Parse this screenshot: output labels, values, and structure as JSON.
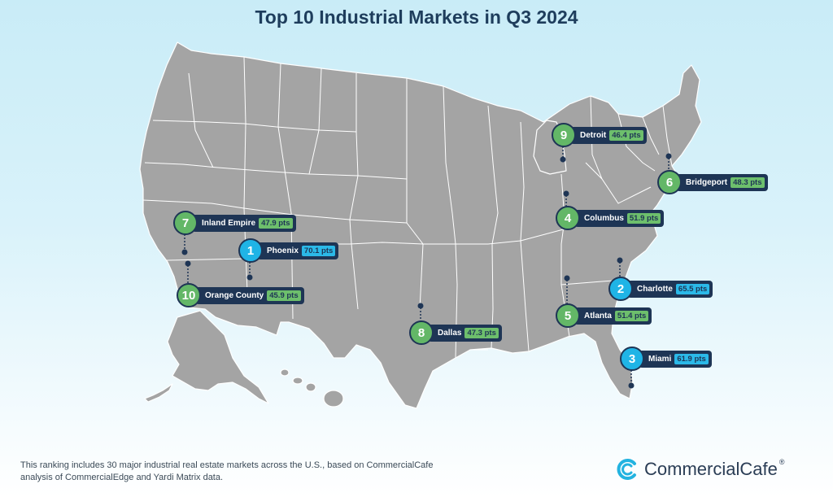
{
  "title": "Top 10 Industrial Markets in Q3 2024",
  "markets": [
    {
      "rank": "1",
      "city": "Phoenix",
      "points": "70.1 pts",
      "color": "blue"
    },
    {
      "rank": "2",
      "city": "Charlotte",
      "points": "65.5 pts",
      "color": "blue"
    },
    {
      "rank": "3",
      "city": "Miami",
      "points": "61.9 pts",
      "color": "blue"
    },
    {
      "rank": "4",
      "city": "Columbus",
      "points": "51.9 pts",
      "color": "green"
    },
    {
      "rank": "5",
      "city": "Atlanta",
      "points": "51.4 pts",
      "color": "green"
    },
    {
      "rank": "6",
      "city": "Bridgeport",
      "points": "48.3 pts",
      "color": "green"
    },
    {
      "rank": "7",
      "city": "Inland Empire",
      "points": "47.9 pts",
      "color": "green"
    },
    {
      "rank": "8",
      "city": "Dallas",
      "points": "47.3 pts",
      "color": "green"
    },
    {
      "rank": "9",
      "city": "Detroit",
      "points": "46.4 pts",
      "color": "green"
    },
    {
      "rank": "10",
      "city": "Orange County",
      "points": "45.9 pts",
      "color": "green"
    }
  ],
  "footnote": "This ranking includes 30 major industrial real estate markets across the U.S., based on CommercialCafe analysis of CommercialEdge and Yardi Matrix data.",
  "logo": {
    "name": "CommercialCafe",
    "mark": "®",
    "icon": "commercialcafe-logo-icon"
  },
  "colors": {
    "blue": "#1fb4e6",
    "green": "#63b767",
    "navy": "#1e3555",
    "land": "#a4a4a4"
  }
}
